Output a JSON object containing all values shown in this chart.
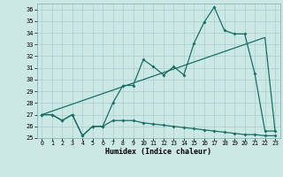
{
  "xlabel": "Humidex (Indice chaleur)",
  "xlim": [
    -0.5,
    23.5
  ],
  "ylim": [
    25,
    36.5
  ],
  "xticks": [
    0,
    1,
    2,
    3,
    4,
    5,
    6,
    7,
    8,
    9,
    10,
    11,
    12,
    13,
    14,
    15,
    16,
    17,
    18,
    19,
    20,
    21,
    22,
    23
  ],
  "yticks": [
    25,
    26,
    27,
    28,
    29,
    30,
    31,
    32,
    33,
    34,
    35,
    36
  ],
  "background_color": "#cce8e5",
  "grid_color": "#a8cecc",
  "line_color": "#1a6e65",
  "x": [
    0,
    1,
    2,
    3,
    4,
    5,
    6,
    7,
    8,
    9,
    10,
    11,
    12,
    13,
    14,
    15,
    16,
    17,
    18,
    19,
    20,
    21,
    22,
    23
  ],
  "line1_y": [
    27.0,
    27.0,
    26.5,
    27.0,
    25.2,
    26.0,
    26.0,
    26.5,
    26.5,
    26.5,
    26.3,
    26.2,
    26.1,
    26.0,
    25.9,
    25.8,
    25.7,
    25.6,
    25.5,
    25.4,
    25.3,
    25.3,
    25.2,
    25.2
  ],
  "line2_y": [
    27.0,
    27.0,
    26.5,
    27.0,
    25.2,
    26.0,
    26.0,
    28.0,
    29.5,
    29.5,
    31.7,
    31.1,
    30.4,
    31.1,
    30.4,
    33.1,
    34.9,
    36.2,
    34.2,
    33.9,
    33.9,
    30.5,
    25.6,
    25.6
  ],
  "line3_x": [
    0,
    1,
    2,
    3,
    4,
    5,
    6,
    7,
    8,
    9,
    10,
    11,
    12,
    13,
    14,
    15,
    16,
    17,
    18,
    19,
    20,
    21,
    22,
    23
  ],
  "line3_y": [
    27.0,
    27.3,
    27.6,
    27.9,
    28.2,
    28.5,
    28.8,
    29.1,
    29.4,
    29.7,
    30.0,
    30.3,
    30.6,
    30.9,
    31.2,
    31.5,
    31.8,
    32.1,
    32.4,
    32.7,
    33.0,
    33.3,
    33.6,
    25.6
  ]
}
